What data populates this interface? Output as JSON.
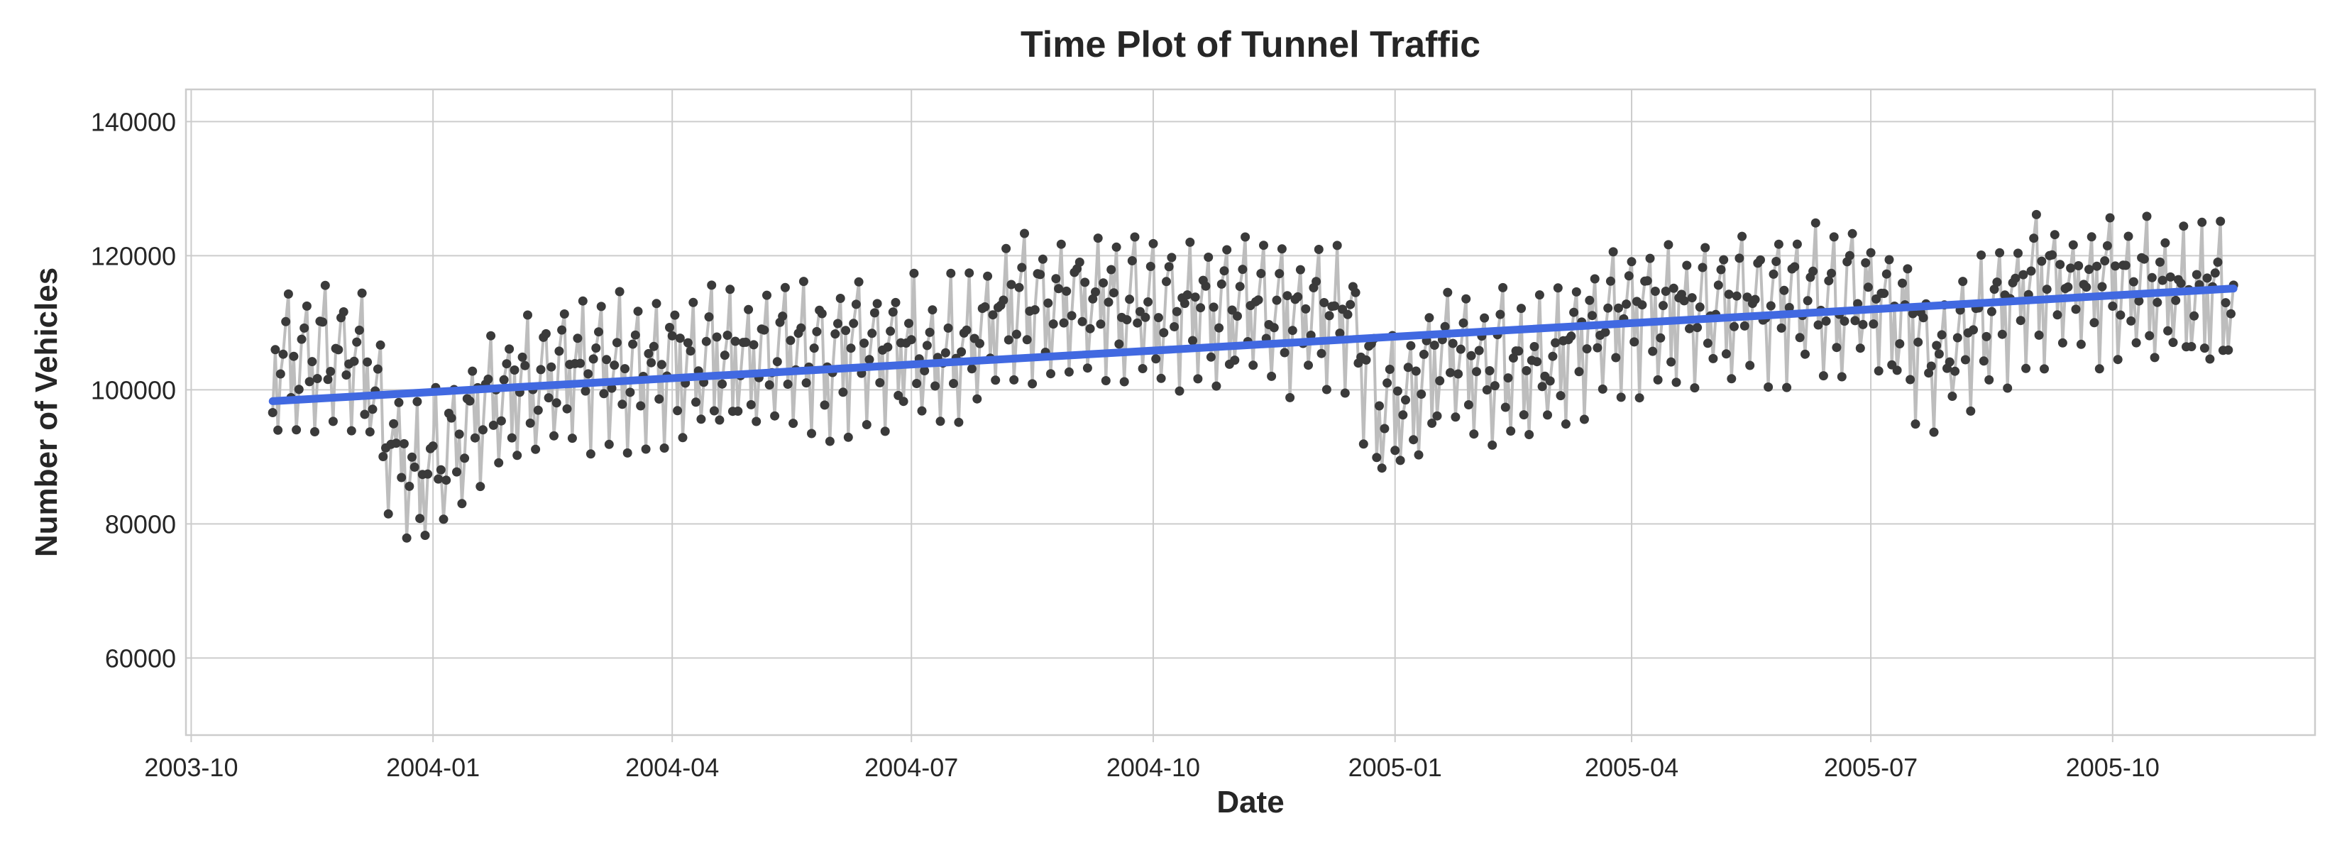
{
  "chart_data": {
    "type": "line",
    "title": "Time Plot of Tunnel Traffic",
    "xlabel": "Date",
    "ylabel": "Number of Vehicles",
    "x_ticks": [
      "2003-10",
      "2004-01",
      "2004-04",
      "2004-07",
      "2004-10",
      "2005-01",
      "2005-04",
      "2005-07",
      "2005-10"
    ],
    "y_ticks": [
      60000,
      80000,
      100000,
      120000,
      140000
    ],
    "xlim": [
      "2003-09-29",
      "2005-12-17"
    ],
    "ylim": [
      48500,
      144800
    ],
    "grid": true,
    "series": [
      {
        "kind": "line_with_markers",
        "color": "#3a3a3a",
        "line_color": "#bdbdbd",
        "start_date": "2003-11-01",
        "end_date": "2005-11-16",
        "weekly_pattern": [
          104500,
          93500,
          102500,
          106500,
          108000,
          112500,
          98500
        ],
        "trend_anchors": [
          [
            "2003-11-01",
            0
          ],
          [
            "2003-12-05",
            1500
          ],
          [
            "2003-12-15",
            -12000
          ],
          [
            "2003-12-25",
            -17000
          ],
          [
            "2004-01-05",
            -14000
          ],
          [
            "2004-01-20",
            -6000
          ],
          [
            "2004-02-15",
            -2000
          ],
          [
            "2004-03-15",
            0
          ],
          [
            "2004-05-15",
            1000
          ],
          [
            "2004-06-15",
            2000
          ],
          [
            "2004-07-20",
            2000
          ],
          [
            "2004-08-01",
            8000
          ],
          [
            "2004-09-01",
            9000
          ],
          [
            "2004-11-01",
            8000
          ],
          [
            "2004-12-15",
            7000
          ],
          [
            "2004-12-25",
            -6000
          ],
          [
            "2005-01-05",
            -7000
          ],
          [
            "2005-01-20",
            2000
          ],
          [
            "2005-02-25",
            -1000
          ],
          [
            "2005-03-10",
            4000
          ],
          [
            "2005-04-10",
            8000
          ],
          [
            "2005-07-05",
            10000
          ],
          [
            "2005-07-25",
            1000
          ],
          [
            "2005-08-10",
            5000
          ],
          [
            "2005-09-01",
            12000
          ],
          [
            "2005-11-16",
            10000
          ]
        ],
        "amplitude": 1.0
      },
      {
        "kind": "trend_line",
        "color": "#4169e1",
        "start": [
          "2003-11-01",
          98300
        ],
        "end": [
          "2005-11-16",
          115100
        ]
      }
    ]
  }
}
